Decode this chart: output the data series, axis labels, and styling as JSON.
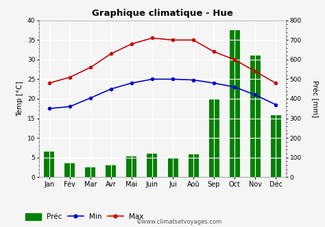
{
  "title": "Graphique climatique - Hue",
  "months": [
    "Jan",
    "Fév",
    "Mar",
    "Avr",
    "Mai",
    "Juin",
    "Jui",
    "Aoû",
    "Sep",
    "Oct",
    "Nov",
    "Déc"
  ],
  "prec_mm": [
    130,
    70,
    50,
    60,
    105,
    120,
    95,
    115,
    400,
    750,
    620,
    315
  ],
  "temp_min": [
    17.5,
    18.0,
    20.2,
    22.5,
    24.0,
    25.0,
    25.0,
    24.8,
    24.0,
    23.0,
    21.0,
    18.5
  ],
  "temp_max": [
    24.0,
    25.5,
    28.0,
    31.5,
    34.0,
    35.5,
    35.0,
    35.0,
    32.0,
    30.0,
    27.0,
    24.0
  ],
  "bar_color": "#008000",
  "min_color": "#0000CD",
  "max_color": "#CC0000",
  "bg_color": "#f5f5f5",
  "grid_color": "#ffffff",
  "ylabel_left": "Temp [°C]",
  "ylabel_right": "Préc [mm]",
  "ylim_left": [
    0,
    40
  ],
  "ylim_right": [
    0,
    800
  ],
  "yticks_left": [
    0,
    5,
    10,
    15,
    20,
    25,
    30,
    35,
    40
  ],
  "yticks_right": [
    0,
    100,
    200,
    300,
    400,
    500,
    600,
    700,
    800
  ],
  "legend_prec": "Préc",
  "legend_min": "Min",
  "legend_max": "Max",
  "watermark": "©www.climatsetvoyages.com",
  "figsize": [
    4.74,
    3.31
  ],
  "dpi": 100
}
